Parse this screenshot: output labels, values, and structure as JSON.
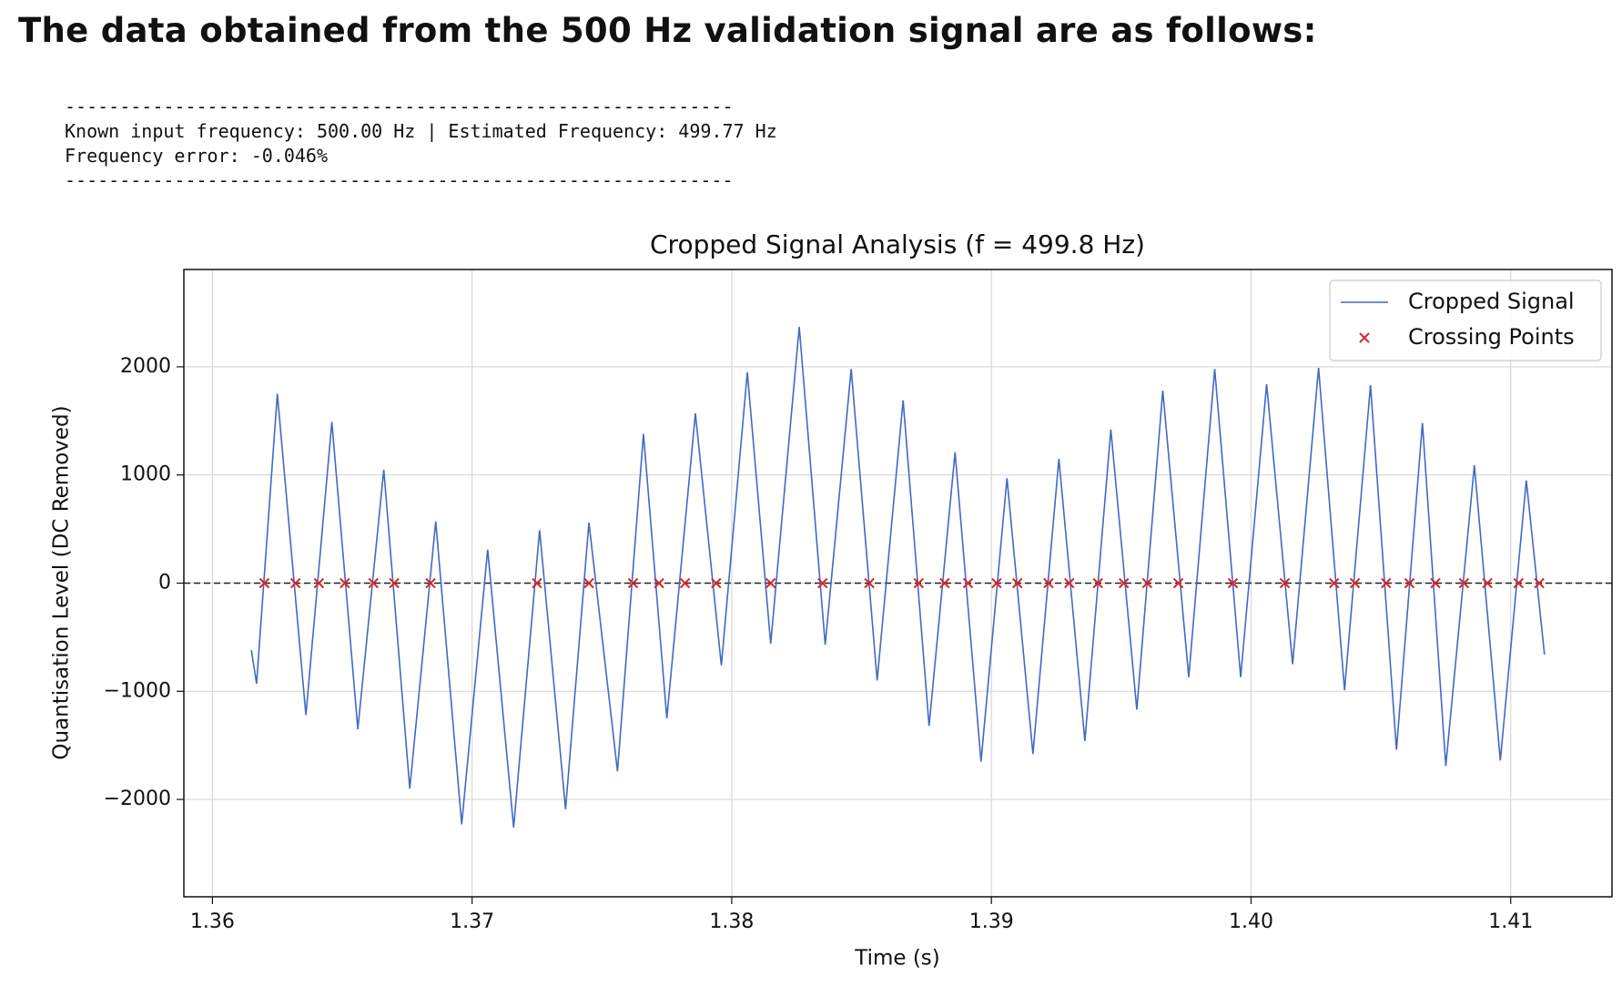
{
  "header": {
    "title": "The data obtained from the 500 Hz validation signal are as follows:"
  },
  "output": {
    "lines": [
      "-------------------------------------------------------------",
      "Known input frequency: 500.00 Hz | Estimated Frequency: 499.77 Hz",
      "Frequency error: -0.046%",
      "-------------------------------------------------------------"
    ]
  },
  "chart_data": {
    "type": "line",
    "title": "Cropped Signal Analysis (f = 499.8 Hz)",
    "xlabel": "Time (s)",
    "ylabel": "Quantisation Level (DC Removed)",
    "xlim": [
      1.3589,
      1.4139
    ],
    "ylim": [
      -2900,
      2900
    ],
    "xticks": [
      1.36,
      1.37,
      1.38,
      1.39,
      {
        "value": 1.4,
        "label": "1.40"
      },
      1.41
    ],
    "yticks": [
      {
        "value": -2000,
        "label": "−2000"
      },
      {
        "value": -1000,
        "label": "−1000"
      },
      0,
      1000,
      2000
    ],
    "grid": true,
    "legend": "upper right",
    "reference_line": 0,
    "series": [
      {
        "name": "Cropped Signal",
        "color": "#4169c4",
        "x": [
          1.3615,
          1.3617,
          1.3625,
          1.3636,
          1.3646,
          1.3656,
          1.3666,
          1.3676,
          1.3686,
          1.3696,
          1.3706,
          1.3716,
          1.3726,
          1.3736,
          1.3745,
          1.3756,
          1.3766,
          1.3775,
          1.3786,
          1.3796,
          1.3806,
          1.3815,
          1.3826,
          1.3836,
          1.3846,
          1.3856,
          1.3866,
          1.3876,
          1.3886,
          1.3896,
          1.3906,
          1.3916,
          1.3926,
          1.3936,
          1.3946,
          1.3956,
          1.3966,
          1.3976,
          1.3986,
          1.3996,
          1.4006,
          1.4016,
          1.4026,
          1.4036,
          1.4046,
          1.4056,
          1.4066,
          1.4075,
          1.4086,
          1.4096,
          1.4106,
          1.4113
        ],
        "values": [
          -620,
          -930,
          1750,
          -1220,
          1490,
          -1350,
          1050,
          -1900,
          570,
          -2230,
          310,
          -2260,
          490,
          -2090,
          560,
          -1740,
          1380,
          -1250,
          1570,
          -760,
          1950,
          -560,
          2370,
          -570,
          1980,
          -900,
          1690,
          -1320,
          1210,
          -1650,
          970,
          -1580,
          1150,
          -1460,
          1420,
          -1170,
          1780,
          -870,
          1980,
          -870,
          1840,
          -750,
          1990,
          -990,
          1830,
          -1540,
          1480,
          -1690,
          1090,
          -1640,
          950,
          -660
        ]
      },
      {
        "name": "Crossing Points",
        "color": "#d62728",
        "marker": "x",
        "x": [
          1.362,
          1.3632,
          1.3641,
          1.3651,
          1.3662,
          1.367,
          1.3684,
          1.3725,
          1.3745,
          1.3762,
          1.3772,
          1.3782,
          1.3794,
          1.3815,
          1.3835,
          1.3853,
          1.3872,
          1.3882,
          1.3891,
          1.3902,
          1.391,
          1.3922,
          1.393,
          1.3941,
          1.3951,
          1.396,
          1.3972,
          1.3993,
          1.4013,
          1.4032,
          1.404,
          1.4052,
          1.4061,
          1.4071,
          1.4082,
          1.4091,
          1.4103,
          1.4111
        ],
        "values": [
          0,
          0,
          0,
          0,
          0,
          0,
          0,
          0,
          0,
          0,
          0,
          0,
          0,
          0,
          0,
          0,
          0,
          0,
          0,
          0,
          0,
          0,
          0,
          0,
          0,
          0,
          0,
          0,
          0,
          0,
          0,
          0,
          0,
          0,
          0,
          0,
          0,
          0
        ]
      }
    ]
  }
}
